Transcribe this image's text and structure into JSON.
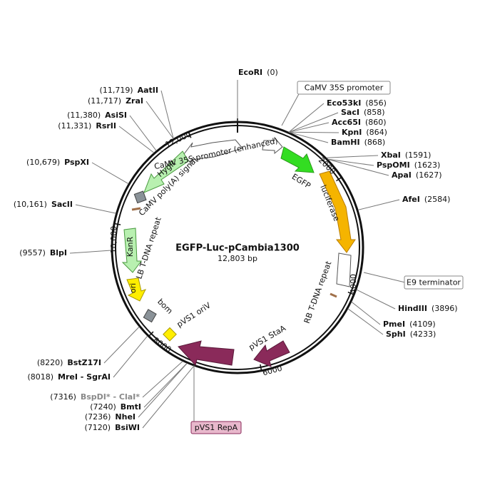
{
  "map": {
    "title": "EGFP-Luc-pCambia1300",
    "size": "12,803 bp",
    "ring_labels": [
      "2000",
      "4000",
      "6000",
      "8000",
      "10,000",
      "12,000"
    ],
    "sites_right": [
      {
        "name": "EcoRI",
        "position": "(0)"
      },
      {
        "name": "Eco53kI",
        "position": "(856)"
      },
      {
        "name": "SacI",
        "position": "(858)"
      },
      {
        "name": "Acc65I",
        "position": "(860)"
      },
      {
        "name": "KpnI",
        "position": "(864)"
      },
      {
        "name": "BamHI",
        "position": "(868)"
      },
      {
        "name": "XbaI",
        "position": "(1591)"
      },
      {
        "name": "PspOMI",
        "position": "(1623)"
      },
      {
        "name": "ApaI",
        "position": "(1627)"
      },
      {
        "name": "AfeI",
        "position": "(2584)"
      },
      {
        "name": "HindIII",
        "position": "(3896)"
      },
      {
        "name": "PmeI",
        "position": "(4109)"
      },
      {
        "name": "SphI",
        "position": "(4233)"
      }
    ],
    "sites_left": [
      {
        "name": "AatII",
        "position": "(11,719)"
      },
      {
        "name": "ZraI",
        "position": "(11,717)"
      },
      {
        "name": "AsiSI",
        "position": "(11,380)"
      },
      {
        "name": "RsrII",
        "position": "(11,331)"
      },
      {
        "name": "PspXI",
        "position": "(10,679)"
      },
      {
        "name": "SacII",
        "position": "(10,161)"
      },
      {
        "name": "BlpI",
        "position": "(9557)"
      },
      {
        "name": "BstZ17I",
        "position": "(8220)"
      },
      {
        "name": "MreI - SgrAI",
        "position": "(8018)"
      },
      {
        "name": "BspDI* - ClaI*",
        "position": "(7316)"
      },
      {
        "name": "BmtI",
        "position": "(7240)"
      },
      {
        "name": "NheI",
        "position": "(7236)"
      },
      {
        "name": "BsiWI",
        "position": "(7120)"
      }
    ],
    "features": {
      "promoter_enh": "CaMV 35S promoter (enhanced)",
      "hygr": "HygR",
      "polya": "CaMV poly(A) signal",
      "lb": "LB T-DNA repeat",
      "kanr": "KanR",
      "ori": "ori",
      "bom": "bom",
      "oriv": "pVS1 oriV",
      "staa": "pVS1 StaA",
      "rb": "RB T-DNA repeat",
      "luciferase": "luciferase",
      "egfp": "EGFP"
    },
    "boxed": {
      "promoter": "CaMV 35S promoter",
      "terminator": "E9 terminator",
      "repa": "pVS1 RepA"
    }
  }
}
